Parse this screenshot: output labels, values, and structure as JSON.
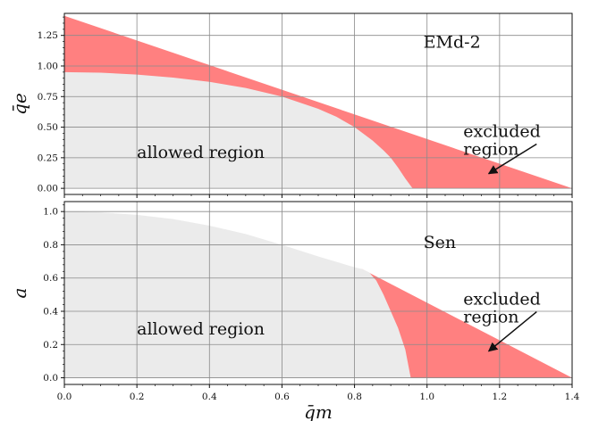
{
  "colors": {
    "allowed": "#ebebeb",
    "excluded": "#ff8080",
    "grid": "#8a8a8a",
    "text": "#111111"
  },
  "chart_data": [
    {
      "type": "area",
      "panel": "top",
      "label": "EMd-2",
      "xlabel": "",
      "ylabel": "q̄e",
      "xlim": [
        0,
        1.4
      ],
      "ylim": [
        -0.05,
        1.43
      ],
      "yticks": [
        "0.00",
        "0.25",
        "0.50",
        "0.75",
        "1.00",
        "1.25"
      ],
      "ytick_values": [
        0,
        0.25,
        0.5,
        0.75,
        1.0,
        1.25
      ],
      "grid": true,
      "regions": [
        {
          "name": "allowed region",
          "color": "#ebebeb",
          "boundary": [
            [
              0,
              0.95
            ],
            [
              0.1,
              0.945
            ],
            [
              0.2,
              0.93
            ],
            [
              0.3,
              0.905
            ],
            [
              0.4,
              0.87
            ],
            [
              0.5,
              0.82
            ],
            [
              0.6,
              0.75
            ],
            [
              0.7,
              0.65
            ],
            [
              0.75,
              0.585
            ],
            [
              0.8,
              0.5
            ],
            [
              0.85,
              0.39
            ],
            [
              0.88,
              0.31
            ],
            [
              0.9,
              0.25
            ],
            [
              0.92,
              0.17
            ],
            [
              0.94,
              0.08
            ],
            [
              0.96,
              0.0
            ]
          ]
        },
        {
          "name": "excluded region",
          "color": "#ff8080",
          "upper": [
            [
              0,
              1.41
            ],
            [
              1.4,
              0.0
            ]
          ]
        }
      ],
      "annotations": [
        {
          "text_lines": [
            "excluded",
            "region"
          ],
          "text_at": [
            1.1,
            0.42
          ],
          "arrow_to": [
            1.17,
            0.12
          ]
        },
        {
          "text_lines": [
            "allowed region"
          ],
          "text_at": [
            0.2,
            0.25
          ]
        },
        {
          "text_lines": [
            "EMd-2"
          ],
          "text_at": [
            0.99,
            1.15
          ]
        }
      ]
    },
    {
      "type": "area",
      "panel": "bottom",
      "label": "Sen",
      "xlabel": "q̄m",
      "ylabel": "a",
      "xlim": [
        0,
        1.4
      ],
      "ylim": [
        -0.04,
        1.06
      ],
      "xticks": [
        "0.0",
        "0.2",
        "0.4",
        "0.6",
        "0.8",
        "1.0",
        "1.2",
        "1.4"
      ],
      "xtick_values": [
        0,
        0.2,
        0.4,
        0.6,
        0.8,
        1.0,
        1.2,
        1.4
      ],
      "yticks": [
        "0.0",
        "0.2",
        "0.4",
        "0.6",
        "0.8",
        "1.0"
      ],
      "ytick_values": [
        0,
        0.2,
        0.4,
        0.6,
        0.8,
        1.0
      ],
      "grid": true,
      "regions": [
        {
          "name": "allowed region",
          "color": "#ebebeb",
          "boundary": [
            [
              0,
              1.0
            ],
            [
              0.1,
              0.995
            ],
            [
              0.2,
              0.98
            ],
            [
              0.3,
              0.955
            ],
            [
              0.4,
              0.915
            ],
            [
              0.5,
              0.865
            ],
            [
              0.6,
              0.8
            ],
            [
              0.7,
              0.73
            ],
            [
              0.8,
              0.665
            ],
            [
              0.82,
              0.655
            ],
            [
              0.84,
              0.635
            ],
            [
              0.86,
              0.585
            ],
            [
              0.88,
              0.5
            ],
            [
              0.9,
              0.4
            ],
            [
              0.92,
              0.3
            ],
            [
              0.94,
              0.17
            ],
            [
              0.955,
              0.0
            ]
          ]
        },
        {
          "name": "excluded region",
          "color": "#ff8080",
          "upper": [
            [
              0.82,
              0.655
            ],
            [
              1.4,
              0.0
            ]
          ]
        }
      ],
      "annotations": [
        {
          "text_lines": [
            "excluded",
            "region"
          ],
          "text_at": [
            1.1,
            0.44
          ],
          "arrow_to": [
            1.17,
            0.16
          ]
        },
        {
          "text_lines": [
            "allowed region"
          ],
          "text_at": [
            0.2,
            0.26
          ]
        },
        {
          "text_lines": [
            "Sen"
          ],
          "text_at": [
            0.99,
            0.78
          ]
        }
      ]
    }
  ]
}
